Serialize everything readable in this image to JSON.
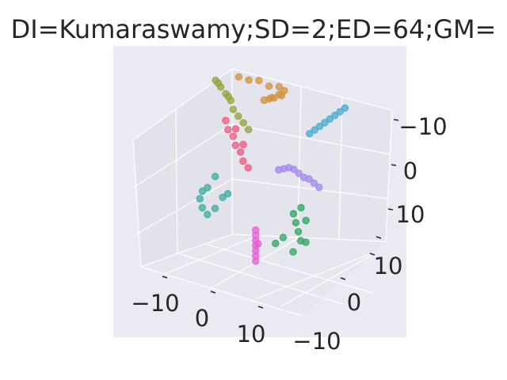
{
  "chart_data": {
    "type": "scatter",
    "title": "DI=Kumaraswamy;SD=2;ED=64;GM=",
    "projection": "3d",
    "xlabel": "",
    "ylabel": "",
    "zlabel": "",
    "x_ticks": [
      "−10",
      "0",
      "10"
    ],
    "y_ticks": [
      "−10",
      "0",
      "10"
    ],
    "z_ticks": [
      "−10",
      "0",
      "10"
    ],
    "xlim": [
      -16,
      16
    ],
    "ylim": [
      -16,
      16
    ],
    "zlim": [
      -16,
      16
    ],
    "grid": true,
    "legend": "none",
    "series": [
      {
        "color": "#d4923a",
        "points": [
          [
            -9,
            8,
            12
          ],
          [
            -7,
            8,
            12
          ],
          [
            -5,
            8,
            12.5
          ],
          [
            -3,
            8,
            12
          ],
          [
            -1,
            8,
            12.5
          ],
          [
            0,
            8,
            12
          ],
          [
            -1,
            8,
            11
          ],
          [
            -2,
            8,
            10
          ],
          [
            -3,
            8,
            9.5
          ],
          [
            -4,
            8,
            9
          ],
          [
            -2,
            7,
            10.5
          ],
          [
            0,
            7,
            11.5
          ]
        ]
      },
      {
        "color": "#45aacf",
        "points": [
          [
            4,
            10,
            4
          ],
          [
            5,
            10,
            5
          ],
          [
            6,
            10,
            6
          ],
          [
            7,
            10,
            7
          ],
          [
            8,
            10,
            8
          ],
          [
            9,
            10,
            9
          ],
          [
            10,
            10,
            10
          ],
          [
            11,
            10,
            11
          ]
        ]
      },
      {
        "color": "#96a23a",
        "points": [
          [
            -11,
            3,
            13
          ],
          [
            -10,
            3,
            12
          ],
          [
            -9,
            3,
            11
          ],
          [
            -8,
            3,
            10
          ],
          [
            -7,
            2,
            9
          ],
          [
            -6,
            2,
            8
          ],
          [
            -5,
            2,
            7
          ],
          [
            -4,
            2,
            6
          ],
          [
            -11,
            4,
            12
          ],
          [
            -9,
            4,
            10
          ]
        ]
      },
      {
        "color": "#f0587e",
        "points": [
          [
            -8,
            1,
            7
          ],
          [
            -7,
            0,
            6
          ],
          [
            -6,
            0,
            5
          ],
          [
            -5,
            -1,
            4
          ],
          [
            -4,
            -1,
            3
          ],
          [
            -3,
            -2,
            2
          ],
          [
            -2,
            -2,
            1
          ],
          [
            -6,
            1,
            6
          ],
          [
            -4,
            0,
            4
          ]
        ]
      },
      {
        "color": "#a484f0",
        "points": [
          [
            2,
            2,
            0
          ],
          [
            3,
            2,
            0.5
          ],
          [
            4,
            2,
            1
          ],
          [
            5,
            2,
            1
          ],
          [
            6,
            2,
            0.5
          ],
          [
            7,
            2,
            0
          ],
          [
            8,
            2,
            0
          ],
          [
            9,
            2,
            -0.5
          ],
          [
            10,
            2,
            -1
          ]
        ]
      },
      {
        "color": "#3aaea0",
        "points": [
          [
            -8,
            -3,
            -2
          ],
          [
            -9,
            -4,
            -4
          ],
          [
            -10,
            -5,
            -6
          ],
          [
            -9,
            -6,
            -7
          ],
          [
            -8,
            -6,
            -8
          ],
          [
            -7,
            -5,
            -7
          ],
          [
            -6,
            -4,
            -5
          ],
          [
            -5,
            -4,
            -4
          ],
          [
            -10,
            -4,
            -5
          ]
        ]
      },
      {
        "color": "#2ea760",
        "points": [
          [
            8,
            -4,
            -4
          ],
          [
            9,
            -5,
            -5
          ],
          [
            10,
            -6,
            -6
          ],
          [
            11,
            -7,
            -7
          ],
          [
            12,
            -7,
            -7
          ],
          [
            9,
            -3,
            -3
          ],
          [
            7,
            -6,
            -8
          ],
          [
            6,
            -7,
            -9
          ],
          [
            10,
            -8,
            -9
          ],
          [
            11,
            -5,
            -4
          ]
        ]
      },
      {
        "color": "#e75ed6",
        "points": [
          [
            0,
            -3,
            -10
          ],
          [
            0,
            -3,
            -11
          ],
          [
            0,
            -3,
            -12
          ],
          [
            0,
            -3,
            -13
          ],
          [
            0,
            -3,
            -14
          ],
          [
            0,
            -3,
            -15
          ],
          [
            0,
            -3,
            -16
          ],
          [
            0.5,
            -3,
            -12.5
          ]
        ]
      }
    ]
  }
}
